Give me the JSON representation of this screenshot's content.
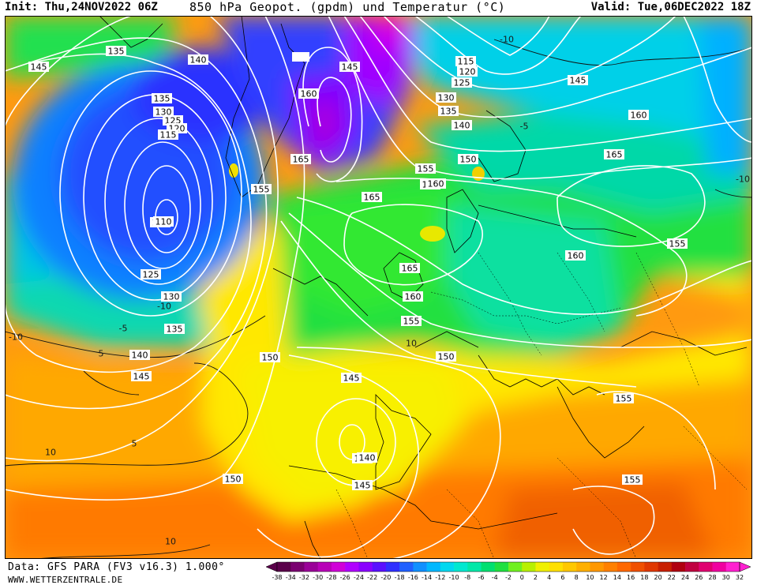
{
  "header": {
    "init": "Init: Thu,24NOV2022 06Z",
    "title": "850 hPa Geopot. (gpdm) und Temperatur (°C)",
    "valid": "Valid: Tue,06DEC2022 18Z"
  },
  "footer": {
    "source": "Data: GFS PARA (FV3 v16.3) 1.000°",
    "site": "WWW.WETTERZENTRALE.DE"
  },
  "legend": {
    "ticks": [
      "-38",
      "-34",
      "-32",
      "-30",
      "-28",
      "-26",
      "-24",
      "-22",
      "-20",
      "-18",
      "-16",
      "-14",
      "-12",
      "-10",
      "-8",
      "-6",
      "-4",
      "-2",
      "0",
      "2",
      "4",
      "6",
      "8",
      "10",
      "12",
      "14",
      "16",
      "18",
      "20",
      "22",
      "24",
      "26",
      "28",
      "30",
      "32"
    ],
    "colors": [
      "#5a004a",
      "#7a0070",
      "#9a0098",
      "#b800b8",
      "#d000d8",
      "#b000ff",
      "#8a00ff",
      "#5a10ff",
      "#3030ff",
      "#2060ff",
      "#1090ff",
      "#00b8ff",
      "#00d8f0",
      "#00e8d0",
      "#00e8a8",
      "#00e070",
      "#20e040",
      "#70f020",
      "#b8f000",
      "#f0f000",
      "#ffe000",
      "#ffc800",
      "#ffb000",
      "#ff9800",
      "#ff8000",
      "#ff6800",
      "#f05000",
      "#e03800",
      "#c82000",
      "#b00010",
      "#c00040",
      "#e00070",
      "#f000a0",
      "#ff20d0"
    ]
  },
  "contours": {
    "geopotential": {
      "lows": [
        {
          "name": "atlantic-low",
          "center": "110"
        },
        {
          "name": "iberian-low",
          "center": "140"
        }
      ],
      "labels": [
        "135",
        "140",
        "145",
        "145",
        "135",
        "130",
        "125",
        "120",
        "115",
        "110",
        "125",
        "130",
        "135",
        "140",
        "145",
        "150",
        "150",
        "145",
        "140",
        "145",
        "150",
        "155",
        "160",
        "165",
        "160",
        "155",
        "150",
        "155",
        "160",
        "165",
        "165",
        "160",
        "155",
        "155",
        "160",
        "145",
        "115",
        "120",
        "125",
        "130",
        "135",
        "140",
        "150",
        "160",
        "155"
      ]
    },
    "temperature_labels": [
      "-10",
      "-10",
      "-5",
      "5",
      "-10",
      "-5",
      "10",
      "10",
      "10",
      "5",
      "-10"
    ]
  }
}
